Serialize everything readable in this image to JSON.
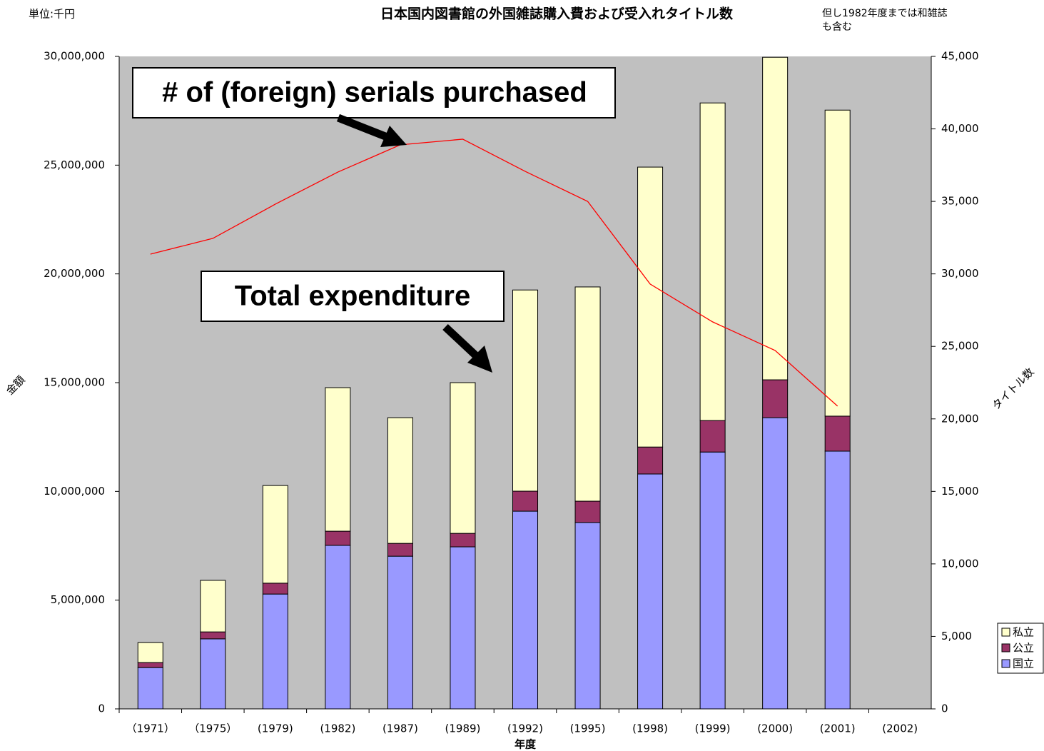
{
  "chart_data": {
    "type": "bar",
    "stacked": true,
    "title": "日本国内図書館の外国雑誌購入費および受入れタイトル数",
    "unit_note": "単位:千円",
    "note": "但し1982年度までは和雑誌も含む",
    "xlabel": "年度",
    "ylabel": "金額",
    "y2label": "タイトル数",
    "annotations": [
      "# of (foreign) serials purchased",
      "Total expenditure"
    ],
    "categories": [
      "（1971）",
      "（1975）",
      "(1979)",
      "(1982)",
      "(1987)",
      "(1989)",
      "(1992)",
      "(1995)",
      "(1998)",
      "(1999)",
      "(2000)",
      "(2001)",
      "(2002)"
    ],
    "series": [
      {
        "name": "国立",
        "color": "#9999ff",
        "values": [
          1900000,
          3220000,
          5280000,
          7520000,
          7020000,
          7450000,
          9090000,
          8570000,
          10800000,
          11810000,
          13390000,
          11850000,
          null
        ]
      },
      {
        "name": "公立",
        "color": "#993366",
        "values": [
          230000,
          320000,
          500000,
          650000,
          590000,
          620000,
          920000,
          980000,
          1240000,
          1450000,
          1740000,
          1610000,
          null
        ]
      },
      {
        "name": "私立",
        "color": "#ffffcc",
        "values": [
          920000,
          2370000,
          4490000,
          6600000,
          5780000,
          6930000,
          9250000,
          9850000,
          12870000,
          14600000,
          14830000,
          14070000,
          null
        ]
      }
    ],
    "line": {
      "color": "#ff0000",
      "axis": "y2",
      "values": [
        31360,
        32450,
        34810,
        37020,
        38900,
        39290,
        37070,
        35000,
        29300,
        26690,
        24720,
        20880,
        null
      ]
    },
    "ylim": [
      0,
      30000000
    ],
    "yticks": [
      0,
      {
        "value": 5000000,
        "label": "5,000,000"
      },
      {
        "value": 10000000,
        "label": "10,000,000"
      },
      {
        "value": 15000000,
        "label": "15,000,000"
      },
      {
        "value": 20000000,
        "label": "20,000,000"
      },
      {
        "value": 25000000,
        "label": "25,000,000"
      },
      {
        "value": 30000000,
        "label": "30,000,000"
      }
    ],
    "y2lim": [
      0,
      45000
    ],
    "y2ticks": [
      0,
      {
        "value": 5000,
        "label": "5,000"
      },
      {
        "value": 10000,
        "label": "10,000"
      },
      {
        "value": 15000,
        "label": "15,000"
      },
      {
        "value": 20000,
        "label": "20,000"
      },
      {
        "value": 25000,
        "label": "25,000"
      },
      {
        "value": 30000,
        "label": "30,000"
      },
      {
        "value": 35000,
        "label": "35,000"
      },
      {
        "value": 40000,
        "label": "40,000"
      },
      {
        "value": 45000,
        "label": "45,000"
      }
    ],
    "grid": false,
    "legend": "right",
    "plot_background": "#c0c0c0"
  }
}
